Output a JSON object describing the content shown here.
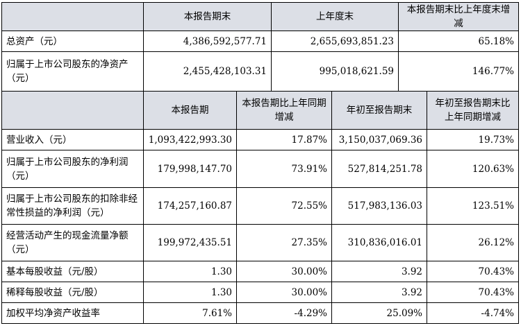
{
  "table1": {
    "headers": [
      "",
      "本报告期末",
      "上年度末",
      "本报告期末比上年度末增减"
    ],
    "rows": [
      {
        "label": "总资产（元）",
        "current": "4,386,592,577.71",
        "prior": "2,655,693,851.23",
        "change": "65.18%"
      },
      {
        "label": "归属于上市公司股东的净资产（元）",
        "current": "2,455,428,103.31",
        "prior": "995,018,621.59",
        "change": "146.77%"
      }
    ]
  },
  "table2": {
    "headers": [
      "",
      "本报告期",
      "本报告期比上年同期增减",
      "年初至报告期末",
      "年初至报告期末比上年同期增减"
    ],
    "rows": [
      {
        "label": "营业收入（元）",
        "period": "1,093,422,993.30",
        "period_change": "17.87%",
        "ytd": "3,150,037,069.36",
        "ytd_change": "19.73%"
      },
      {
        "label": "归属于上市公司股东的净利润（元）",
        "period": "179,998,147.70",
        "period_change": "73.91%",
        "ytd": "527,814,251.78",
        "ytd_change": "120.63%"
      },
      {
        "label": "归属于上市公司股东的扣除非经常性损益的净利润（元）",
        "period": "174,257,160.87",
        "period_change": "72.55%",
        "ytd": "517,983,136.03",
        "ytd_change": "123.51%"
      },
      {
        "label": "经营活动产生的现金流量净额（元）",
        "period": "199,972,435.51",
        "period_change": "27.35%",
        "ytd": "310,836,016.01",
        "ytd_change": "26.12%"
      },
      {
        "label": "基本每股收益（元/股）",
        "period": "1.30",
        "period_change": "30.00%",
        "ytd": "3.92",
        "ytd_change": "70.43%"
      },
      {
        "label": "稀释每股收益（元/股）",
        "period": "1.30",
        "period_change": "30.00%",
        "ytd": "3.92",
        "ytd_change": "70.43%"
      },
      {
        "label": "加权平均净资产收益率",
        "period": "7.61%",
        "period_change": "-4.29%",
        "ytd": "25.09%",
        "ytd_change": "-4.74%"
      }
    ]
  }
}
